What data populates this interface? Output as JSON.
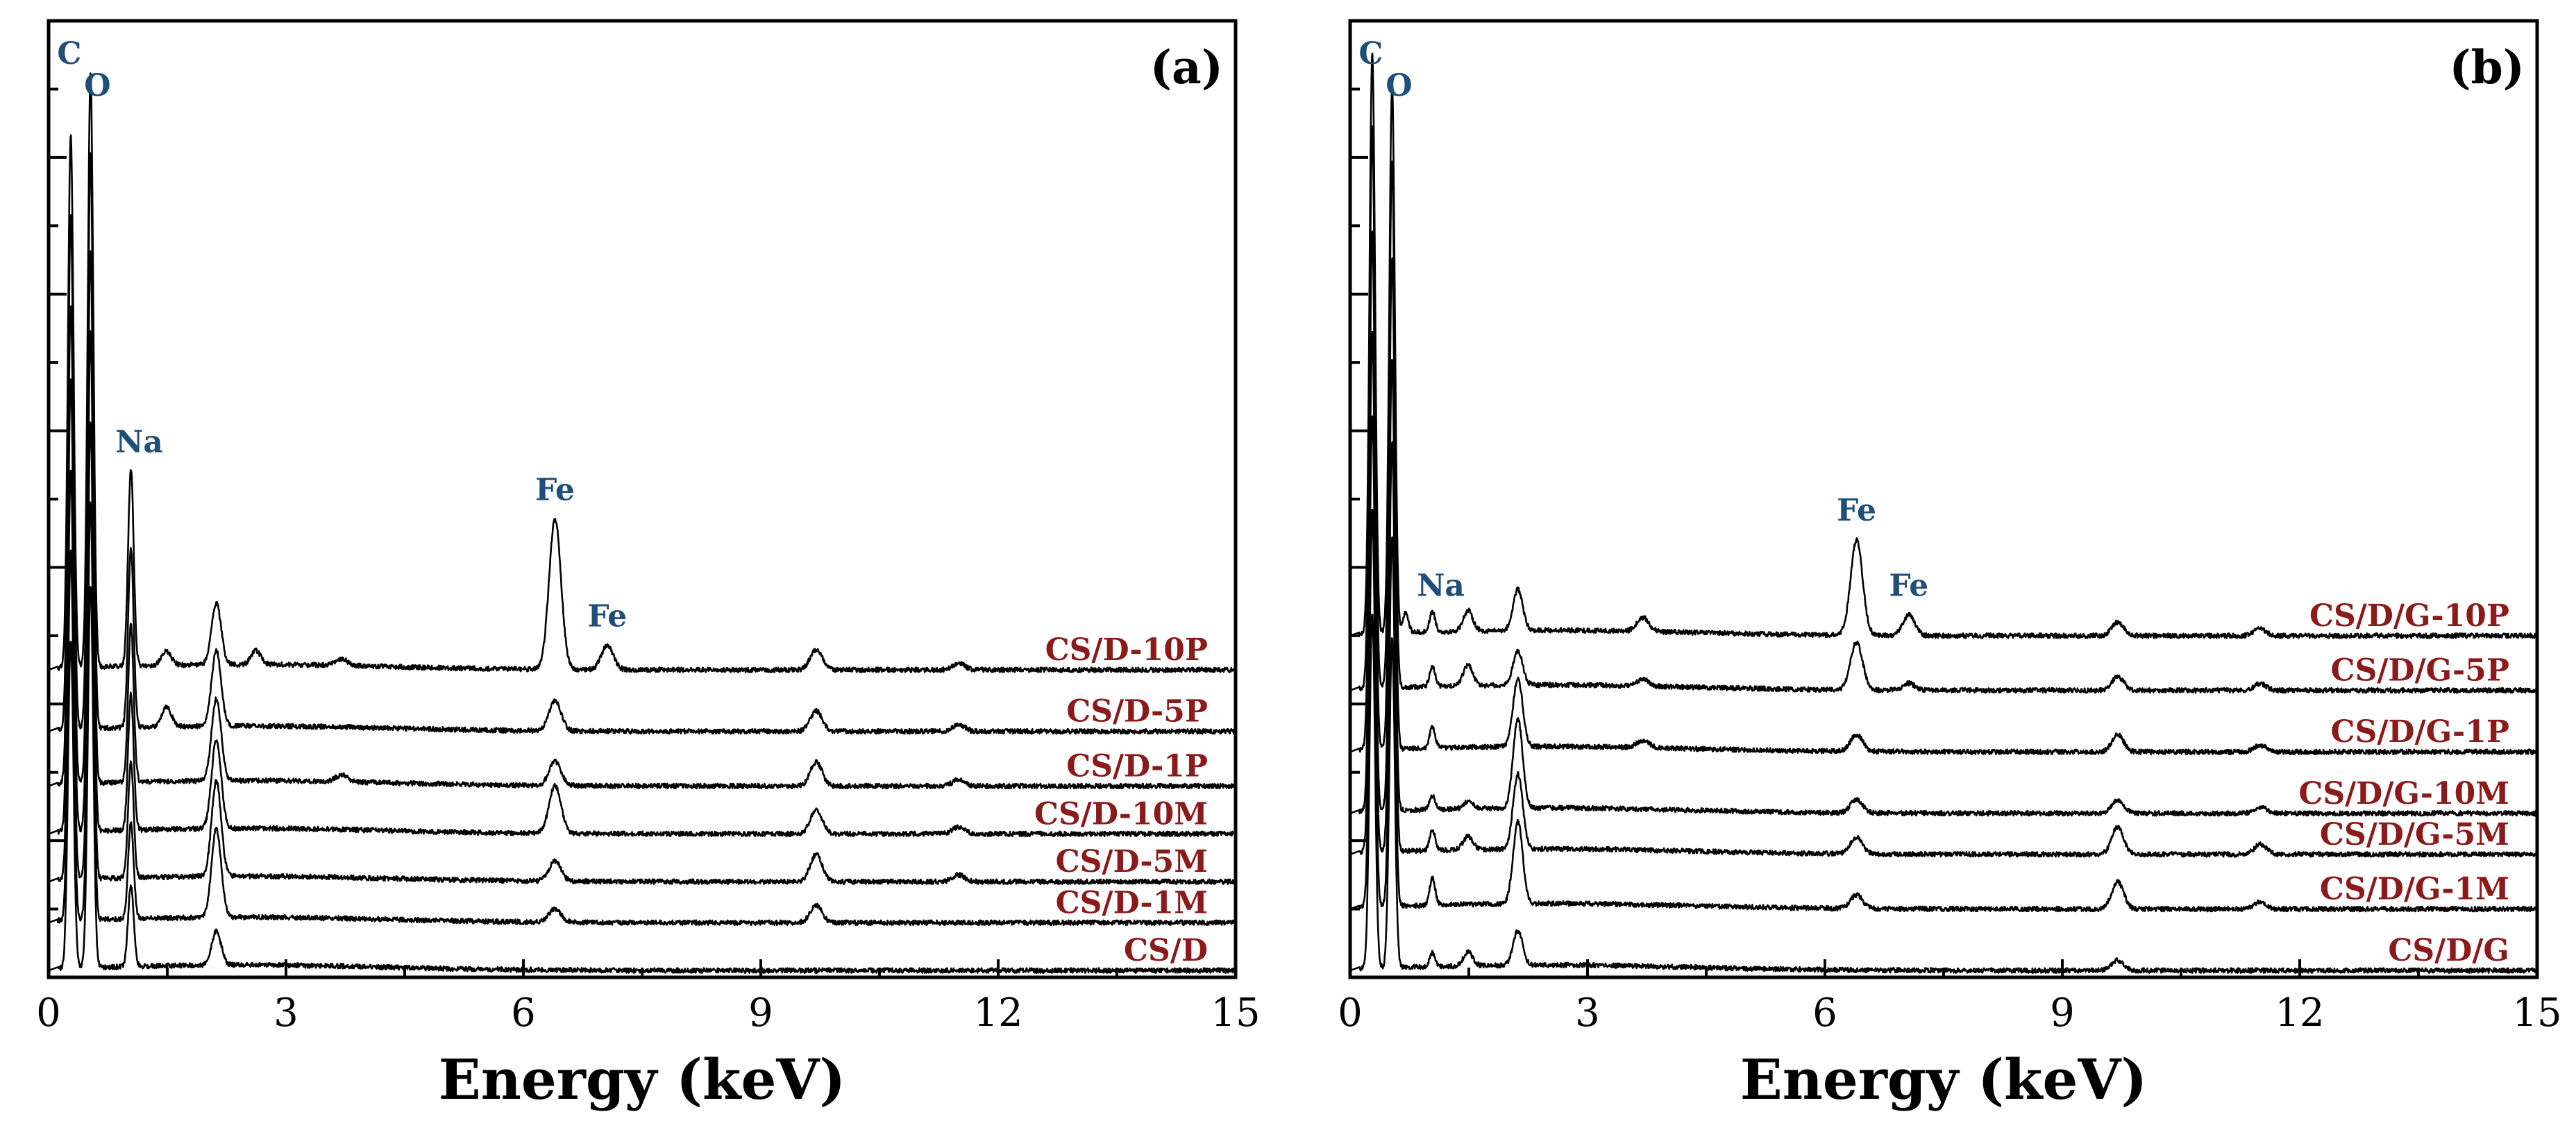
{
  "chart_data": [
    {
      "type": "line",
      "panel_label": "(a)",
      "xlabel": "Energy (keV)",
      "ylabel": "",
      "xlim": [
        0,
        15
      ],
      "xticks": [
        0,
        3,
        6,
        9,
        12,
        15
      ],
      "ylim": [
        0,
        14
      ],
      "grid": false,
      "legend": "right-side inline labels",
      "peak_annotations": [
        {
          "label": "C",
          "energy": 0.28
        },
        {
          "label": "O",
          "energy": 0.53
        },
        {
          "label": "Na",
          "energy": 1.04
        },
        {
          "label": "Fe",
          "energy": 6.4
        },
        {
          "label": "Fe",
          "energy": 7.06
        }
      ],
      "series": [
        {
          "name": "CS/D-10P",
          "offset": 4.5,
          "peaks": [
            [
              0.28,
              7.8
            ],
            [
              0.53,
              8.7
            ],
            [
              1.04,
              2.9
            ],
            [
              1.49,
              0.2
            ],
            [
              2.12,
              0.9
            ],
            [
              2.62,
              0.2
            ],
            [
              3.7,
              0.1
            ],
            [
              6.4,
              2.2
            ],
            [
              7.06,
              0.35
            ],
            [
              9.7,
              0.3
            ],
            [
              11.5,
              0.1
            ]
          ]
        },
        {
          "name": "CS/D-5P",
          "offset": 3.6,
          "peaks": [
            [
              0.28,
              7.5
            ],
            [
              0.53,
              8.4
            ],
            [
              1.04,
              2.6
            ],
            [
              1.49,
              0.3
            ],
            [
              2.12,
              1.1
            ],
            [
              6.4,
              0.45
            ],
            [
              9.7,
              0.3
            ],
            [
              11.5,
              0.1
            ]
          ]
        },
        {
          "name": "CS/D-1P",
          "offset": 2.8,
          "peaks": [
            [
              0.28,
              7.0
            ],
            [
              0.53,
              7.8
            ],
            [
              1.04,
              2.3
            ],
            [
              2.12,
              1.2
            ],
            [
              3.7,
              0.1
            ],
            [
              6.4,
              0.35
            ],
            [
              9.7,
              0.35
            ],
            [
              11.5,
              0.1
            ]
          ]
        },
        {
          "name": "CS/D-10M",
          "offset": 2.1,
          "peaks": [
            [
              0.28,
              6.6
            ],
            [
              0.53,
              7.3
            ],
            [
              1.04,
              2.0
            ],
            [
              2.12,
              1.3
            ],
            [
              6.4,
              0.7
            ],
            [
              9.7,
              0.35
            ],
            [
              11.5,
              0.1
            ]
          ]
        },
        {
          "name": "CS/D-5M",
          "offset": 1.4,
          "peaks": [
            [
              0.28,
              6.0
            ],
            [
              0.53,
              6.7
            ],
            [
              1.04,
              1.7
            ],
            [
              2.12,
              1.4
            ],
            [
              6.4,
              0.3
            ],
            [
              9.7,
              0.4
            ],
            [
              11.5,
              0.1
            ]
          ]
        },
        {
          "name": "CS/D-1M",
          "offset": 0.8,
          "peaks": [
            [
              0.28,
              5.4
            ],
            [
              0.53,
              6.1
            ],
            [
              1.04,
              1.4
            ],
            [
              2.12,
              1.3
            ],
            [
              6.4,
              0.2
            ],
            [
              9.7,
              0.25
            ]
          ]
        },
        {
          "name": "CS/D",
          "offset": 0.1,
          "peaks": [
            [
              0.28,
              4.8
            ],
            [
              0.53,
              5.6
            ],
            [
              1.04,
              1.2
            ],
            [
              2.12,
              0.5
            ]
          ]
        }
      ]
    },
    {
      "type": "line",
      "panel_label": "(b)",
      "xlabel": "Energy (keV)",
      "ylabel": "",
      "xlim": [
        0,
        15
      ],
      "xticks": [
        0,
        3,
        6,
        9,
        12,
        15
      ],
      "ylim": [
        0,
        14
      ],
      "grid": false,
      "legend": "right-side inline labels",
      "peak_annotations": [
        {
          "label": "C",
          "energy": 0.28
        },
        {
          "label": "O",
          "energy": 0.53
        },
        {
          "label": "Na",
          "energy": 1.04
        },
        {
          "label": "Fe",
          "energy": 6.4
        },
        {
          "label": "Fe",
          "energy": 7.06
        }
      ],
      "series": [
        {
          "name": "CS/D/G-10P",
          "offset": 5.0,
          "peaks": [
            [
              0.28,
              8.5
            ],
            [
              0.53,
              8.0
            ],
            [
              0.7,
              0.3
            ],
            [
              1.04,
              0.3
            ],
            [
              1.49,
              0.3
            ],
            [
              2.12,
              0.6
            ],
            [
              3.7,
              0.2
            ],
            [
              6.4,
              1.4
            ],
            [
              7.06,
              0.3
            ],
            [
              9.7,
              0.2
            ],
            [
              11.5,
              0.1
            ]
          ]
        },
        {
          "name": "CS/D/G-5P",
          "offset": 4.2,
          "peaks": [
            [
              0.28,
              8.2
            ],
            [
              0.53,
              7.7
            ],
            [
              1.04,
              0.3
            ],
            [
              1.49,
              0.3
            ],
            [
              2.12,
              0.5
            ],
            [
              3.7,
              0.1
            ],
            [
              6.4,
              0.7
            ],
            [
              7.06,
              0.1
            ],
            [
              9.7,
              0.2
            ],
            [
              11.5,
              0.1
            ]
          ]
        },
        {
          "name": "CS/D/G-1P",
          "offset": 3.3,
          "peaks": [
            [
              0.28,
              7.6
            ],
            [
              0.53,
              7.2
            ],
            [
              1.04,
              0.3
            ],
            [
              2.12,
              1.0
            ],
            [
              3.7,
              0.1
            ],
            [
              6.4,
              0.25
            ],
            [
              9.7,
              0.25
            ],
            [
              11.5,
              0.1
            ]
          ]
        },
        {
          "name": "CS/D/G-10M",
          "offset": 2.4,
          "peaks": [
            [
              0.28,
              7.0
            ],
            [
              0.53,
              6.6
            ],
            [
              1.04,
              0.2
            ],
            [
              1.49,
              0.1
            ],
            [
              2.12,
              1.3
            ],
            [
              6.4,
              0.2
            ],
            [
              9.7,
              0.2
            ],
            [
              11.5,
              0.1
            ]
          ]
        },
        {
          "name": "CS/D/G-5M",
          "offset": 1.8,
          "peaks": [
            [
              0.28,
              6.4
            ],
            [
              0.53,
              6.0
            ],
            [
              1.04,
              0.3
            ],
            [
              1.49,
              0.2
            ],
            [
              2.12,
              1.1
            ],
            [
              6.4,
              0.25
            ],
            [
              9.7,
              0.4
            ],
            [
              11.5,
              0.15
            ]
          ]
        },
        {
          "name": "CS/D/G-1M",
          "offset": 1.0,
          "peaks": [
            [
              0.28,
              5.8
            ],
            [
              0.53,
              5.4
            ],
            [
              1.04,
              0.4
            ],
            [
              2.12,
              1.2
            ],
            [
              6.4,
              0.2
            ],
            [
              9.7,
              0.4
            ],
            [
              11.5,
              0.1
            ]
          ]
        },
        {
          "name": "CS/D/G",
          "offset": 0.1,
          "peaks": [
            [
              0.28,
              5.2
            ],
            [
              0.53,
              4.8
            ],
            [
              1.04,
              0.2
            ],
            [
              1.49,
              0.2
            ],
            [
              2.12,
              0.5
            ],
            [
              9.7,
              0.15
            ]
          ]
        }
      ]
    }
  ],
  "colors": {
    "peak_label": "#1f4e79",
    "series_label": "#8b1a1a",
    "line": "#000000",
    "axis": "#000000"
  }
}
